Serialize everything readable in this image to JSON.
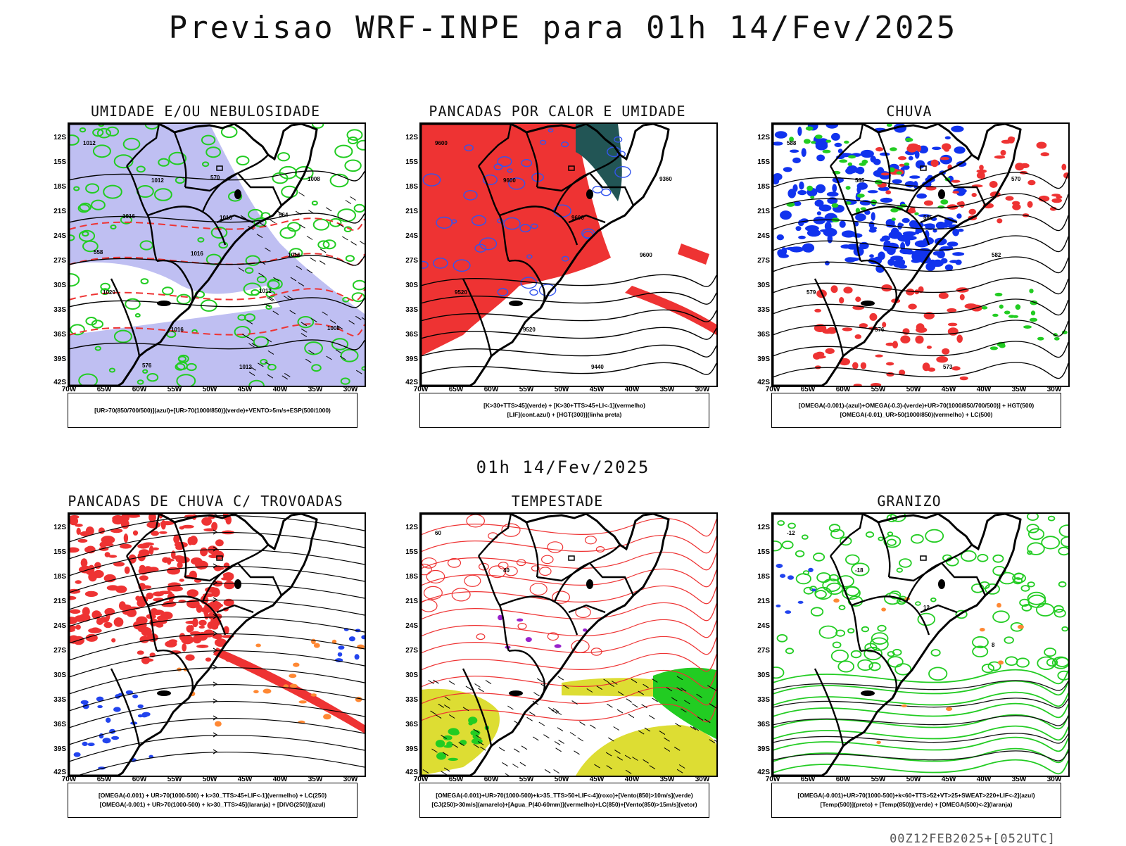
{
  "header": {
    "title": "Previsao WRF-INPE  para 01h 14/Fev/2025"
  },
  "mid_label": "01h 14/Fev/2025",
  "footer": {
    "run_code": "00Z12FEB2025+[052UTC]"
  },
  "axes": {
    "lat_labels": [
      "12S",
      "15S",
      "18S",
      "21S",
      "24S",
      "27S",
      "30S",
      "33S",
      "36S",
      "39S",
      "42S"
    ],
    "lon_labels": [
      "70W",
      "65W",
      "60W",
      "55W",
      "50W",
      "45W",
      "40W",
      "35W",
      "30W"
    ]
  },
  "panels": [
    {
      "id": "umidade",
      "title": "UMIDADE E/OU NEBULOSIDADE",
      "legend": [
        "[UR>70(850/700/500)](azul)+[UR>70(1000/850)](verde)+VENTO>5m/s+ESP(500/1000)"
      ],
      "colors": {
        "primary": "#aaaaee",
        "secondary": "#22cc22",
        "tertiary": "#ee3333"
      },
      "contour_labels": [
        "1012",
        "1012",
        "1016",
        "1016",
        "1020",
        "1016",
        "1012",
        "1008",
        "1016",
        "1016",
        "1012",
        "1008",
        "576",
        "570",
        "564",
        "558"
      ]
    },
    {
      "id": "pancadas-calor",
      "title": "PANCADAS POR CALOR E UMIDADE",
      "legend": [
        "[K>30+TTS>45](verde) + [K>30+TTS>45+LI<-1](vermelho)",
        "[LIF](cont.azul) + [HGT(300)](linha preta)"
      ],
      "colors": {
        "primary": "#ee3333",
        "secondary": "#225555",
        "tertiary": "#3355ee"
      },
      "contour_labels": [
        "9600",
        "9600",
        "9600",
        "9600",
        "9520",
        "9520",
        "9440",
        "9360"
      ]
    },
    {
      "id": "chuva",
      "title": "CHUVA",
      "legend": [
        "[OMEGA(-0.001)-(azul)+OMEGA(-0.3)-(verde)+UR>70(1000/850/700/500)] + HGT(500)",
        "[OMEGA(-0.01)_UR>50(1000/850)(vermelho) + LC(500)"
      ],
      "colors": {
        "primary": "#1133ee",
        "secondary": "#ee3333",
        "tertiary": "#22cc22"
      },
      "contour_labels": [
        "588",
        "585",
        "585",
        "582",
        "579",
        "576",
        "573",
        "570"
      ]
    },
    {
      "id": "pancadas-trovoadas",
      "title": "PANCADAS DE CHUVA C/ TROVOADAS",
      "legend": [
        "[OMEGA(-0.001) + UR>70(1000-500) + k>30_TTS>45+LIF<-1](vermelho) + LC(250)",
        "[OMEGA(-0.001) + UR>70(1000-500) + k>30_TTS>45](laranja) + [DIVG(250)](azul)"
      ],
      "colors": {
        "primary": "#ee3333",
        "secondary": "#ff8833",
        "tertiary": "#2244ee"
      },
      "contour_labels": []
    },
    {
      "id": "tempestade",
      "title": "TEMPESTADE",
      "legend": [
        "[OMEGA(-0.001)+UR>70(1000-500)+k>35_TTS>50+LIF<-4](roxo)+[Vento(850)>10m/s](verde)",
        "[CJ(250)>30m/s](amarelo)+[Agua_P(40-60mm)](vermelho)+LC(850)+[Vento(850)>15m/s](vetor)"
      ],
      "colors": {
        "primary": "#dddd33",
        "secondary": "#22cc22",
        "tertiary": "#ee3333"
      },
      "contour_labels": [
        "60",
        "40"
      ]
    },
    {
      "id": "granizo",
      "title": "GRANIZO",
      "legend": [
        "[OMEGA(-0.001)+UR>70(1000-500)+k<60+TTS>52+VT>25+SWEAT>220+LIF<-2](azul)",
        "[Temp(500)](preto) + [Temp(850)](verde) + [OMEGA(500)<-2](laranja)"
      ],
      "colors": {
        "primary": "#22cc22",
        "secondary": "#ff8833",
        "tertiary": "#111111"
      },
      "contour_labels": [
        "-12",
        "-18",
        "12",
        "8"
      ]
    }
  ]
}
